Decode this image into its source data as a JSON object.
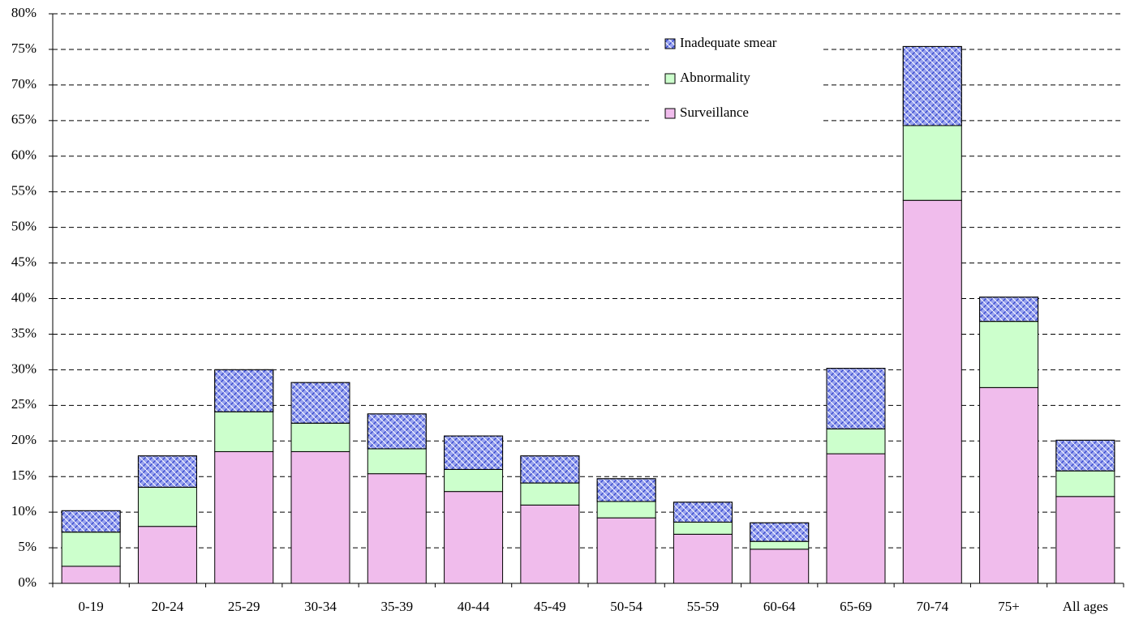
{
  "chart_data": {
    "type": "stacked_bar",
    "categories": [
      "0-19",
      "20-24",
      "25-29",
      "30-34",
      "35-39",
      "40-44",
      "45-49",
      "50-54",
      "55-59",
      "60-64",
      "65-69",
      "70-74",
      "75+",
      "All ages"
    ],
    "series": [
      {
        "name": "Surveillance",
        "color": "#f0bcec",
        "values": [
          2.4,
          8.0,
          18.5,
          18.5,
          15.4,
          12.9,
          11.0,
          9.2,
          6.9,
          4.8,
          18.2,
          53.8,
          27.5,
          12.2
        ]
      },
      {
        "name": "Abnormality",
        "color": "#ccffcc",
        "values": [
          4.8,
          5.5,
          5.6,
          4.0,
          3.5,
          3.1,
          3.1,
          2.3,
          1.7,
          1.1,
          3.5,
          10.5,
          9.3,
          3.6
        ]
      },
      {
        "name": "Inadequate smear",
        "color": "#99a3ee",
        "values": [
          3.0,
          4.4,
          5.9,
          5.7,
          4.9,
          4.7,
          3.8,
          3.2,
          2.8,
          2.6,
          8.5,
          11.1,
          3.4,
          4.3
        ]
      }
    ],
    "ylim": [
      0,
      80
    ],
    "yticks": [
      {
        "value": 0,
        "label": "0%"
      },
      {
        "value": 5,
        "label": "5%"
      },
      {
        "value": 10,
        "label": "10%"
      },
      {
        "value": 15,
        "label": "15%"
      },
      {
        "value": 20,
        "label": "20%"
      },
      {
        "value": 25,
        "label": "25%"
      },
      {
        "value": 30,
        "label": "30%"
      },
      {
        "value": 35,
        "label": "35%"
      },
      {
        "value": 40,
        "label": "40%"
      },
      {
        "value": 45,
        "label": "45%"
      },
      {
        "value": 50,
        "label": "50%"
      },
      {
        "value": 55,
        "label": "55%"
      },
      {
        "value": 60,
        "label": "60%"
      },
      {
        "value": 65,
        "label": "65%"
      },
      {
        "value": 70,
        "label": "70%"
      },
      {
        "value": 75,
        "label": "75%"
      },
      {
        "value": 80,
        "label": "80%"
      }
    ],
    "grid": true,
    "legend": "top-right"
  }
}
